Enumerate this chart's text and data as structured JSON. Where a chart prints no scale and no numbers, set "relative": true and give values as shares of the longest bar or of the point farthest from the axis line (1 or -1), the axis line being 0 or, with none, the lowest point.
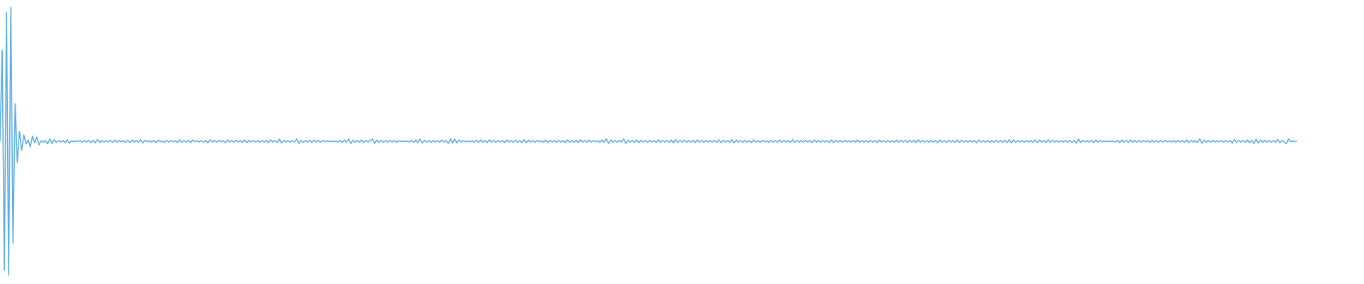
{
  "chart_data": {
    "type": "line",
    "relative": true,
    "color": "#5dade2",
    "categories": [
      null,
      null,
      null,
      null,
      null,
      null,
      null,
      null,
      null,
      null,
      null,
      null,
      null,
      null,
      null,
      null,
      null,
      null,
      null,
      null,
      null,
      null,
      null,
      null,
      null,
      null,
      null,
      null,
      null,
      null,
      null,
      null,
      null,
      null,
      null,
      null,
      null,
      null,
      null,
      null,
      null,
      null,
      null,
      null,
      null,
      null,
      null,
      null,
      null,
      null,
      null,
      null,
      null,
      null,
      null,
      null,
      null,
      null,
      null,
      null,
      null,
      null,
      null,
      null,
      null,
      null,
      null,
      null,
      null,
      null,
      null,
      null,
      null,
      null,
      null,
      null,
      null,
      null,
      null,
      null,
      null,
      null,
      null,
      null,
      null,
      null,
      null,
      null,
      null,
      null,
      null,
      null,
      null,
      null,
      null,
      null,
      null,
      null,
      null,
      null,
      null,
      null,
      null,
      null,
      null,
      null,
      null,
      null,
      null,
      null,
      null,
      null,
      null,
      null,
      null,
      null,
      null,
      null,
      null,
      null,
      null,
      null,
      null,
      null,
      null,
      null,
      null,
      null,
      null,
      null,
      null,
      null,
      null,
      null,
      null,
      null,
      null,
      null,
      null,
      null,
      null,
      null,
      null,
      null,
      null,
      null,
      null,
      null,
      null,
      null,
      null,
      null,
      null,
      null,
      null,
      null,
      null,
      null,
      null,
      null,
      null,
      null,
      null,
      null,
      null,
      null,
      null,
      null,
      null,
      null,
      null,
      null,
      null,
      null,
      null,
      null,
      null,
      null,
      null,
      null,
      null,
      null,
      null,
      null,
      null,
      null,
      null,
      null,
      null,
      null,
      null,
      null,
      null,
      null,
      null,
      null,
      null,
      null,
      null,
      null,
      null,
      null,
      null,
      null,
      null,
      null,
      null,
      null,
      null,
      null,
      null,
      null,
      null,
      null,
      null,
      null,
      null,
      null,
      null,
      null,
      null,
      null,
      null,
      null,
      null,
      null,
      null,
      null,
      null,
      null,
      null,
      null,
      null,
      null,
      null,
      null,
      null,
      null,
      null,
      null,
      null,
      null,
      null,
      null,
      null,
      null,
      null,
      null,
      null,
      null,
      null,
      null,
      null,
      null,
      null,
      null,
      null,
      null,
      null,
      null,
      null,
      null,
      null,
      null,
      null,
      null,
      null,
      null,
      null,
      null,
      null,
      null,
      null,
      null,
      null,
      null,
      null,
      null,
      null,
      null,
      null,
      null,
      null,
      null,
      null,
      null,
      null,
      null,
      null,
      null,
      null,
      null,
      null,
      null,
      null,
      null,
      null,
      null,
      null,
      null,
      null,
      null,
      null,
      null,
      null,
      null,
      null,
      null,
      null,
      null,
      null,
      null,
      null,
      null,
      null,
      null,
      null,
      null,
      null,
      null,
      null,
      null,
      null,
      null,
      null,
      null,
      null,
      null,
      null,
      null,
      null,
      null,
      null,
      null,
      null,
      null,
      null,
      null,
      null,
      null,
      null,
      null,
      null,
      null,
      null,
      null,
      null,
      null,
      null,
      null,
      null,
      null,
      null,
      null,
      null,
      null,
      null,
      null,
      null,
      null,
      null,
      null,
      null,
      null,
      null,
      null,
      null,
      null,
      null,
      null,
      null,
      null,
      null,
      null,
      null,
      null,
      null,
      null,
      null,
      null,
      null,
      null,
      null,
      null,
      null,
      null,
      null,
      null,
      null,
      null,
      null,
      null,
      null,
      null,
      null,
      null,
      null,
      null,
      null,
      null,
      null,
      null,
      null,
      null,
      null,
      null,
      null,
      null,
      null,
      null,
      null,
      null,
      null,
      null,
      null,
      null,
      null,
      null,
      null,
      null,
      null,
      null,
      null,
      null,
      null,
      null,
      null,
      null,
      null,
      null,
      null,
      null,
      null,
      null,
      null,
      null,
      null,
      null,
      null,
      null,
      null,
      null,
      null,
      null,
      null,
      null,
      null,
      null,
      null,
      null,
      null,
      null,
      null,
      null,
      null,
      null,
      null,
      null,
      null,
      null,
      null,
      null,
      null,
      null,
      null,
      null,
      null,
      null,
      null,
      null,
      null,
      null,
      null,
      null,
      null,
      null,
      null,
      null,
      null,
      null,
      null,
      null,
      null,
      null,
      null,
      null,
      null,
      null,
      null,
      null,
      null,
      null,
      null,
      null,
      null,
      null,
      null,
      null,
      null,
      null,
      null,
      null,
      null,
      null,
      null,
      null,
      null,
      null,
      null,
      null,
      null,
      null,
      null,
      null,
      null,
      null,
      null,
      null,
      null,
      null,
      null,
      null,
      null,
      null,
      null,
      null,
      null,
      null,
      null,
      null,
      null,
      null,
      null,
      null,
      null,
      null,
      null,
      null,
      null,
      null,
      null,
      null,
      null,
      null,
      null,
      null,
      null,
      null,
      null,
      null,
      null,
      null,
      null,
      null,
      null,
      null,
      null,
      null,
      null,
      null,
      null,
      null,
      null,
      null,
      null,
      null,
      null,
      null,
      null,
      null,
      null,
      null,
      null,
      null,
      null,
      null,
      null,
      null,
      null,
      null,
      null,
      null,
      null,
      null,
      null,
      null,
      null,
      null,
      null,
      null,
      null,
      null,
      null,
      null,
      null,
      null,
      null,
      null,
      null,
      null
    ],
    "values": [
      0.5,
      0.84,
      0.02,
      0.98,
      0.0,
      1.0,
      0.12,
      0.64,
      0.42,
      0.537,
      0.466,
      0.524,
      0.49,
      0.505,
      0.479,
      0.519,
      0.495,
      0.516,
      0.487,
      0.502,
      0.497,
      0.503,
      0.49,
      0.509,
      0.492,
      0.506,
      0.496,
      0.504,
      0.497,
      0.503,
      0.495,
      0.506,
      0.493,
      0.501,
      0.499,
      0.501,
      0.499,
      0.503,
      0.496,
      0.504,
      0.497,
      0.504,
      0.495,
      0.503,
      0.494,
      0.507,
      0.495,
      0.503,
      0.497,
      0.502,
      0.498,
      0.504,
      0.496,
      0.505,
      0.497,
      0.503,
      0.498,
      0.502,
      0.496,
      0.504,
      0.495,
      0.505,
      0.497,
      0.503,
      0.496,
      0.506,
      0.494,
      0.504,
      0.498,
      0.502,
      0.497,
      0.503,
      0.495,
      0.505,
      0.498,
      0.502,
      0.496,
      0.504,
      0.497,
      0.503,
      0.498,
      0.502,
      0.495,
      0.506,
      0.496,
      0.503,
      0.497,
      0.504,
      0.495,
      0.505,
      0.498,
      0.502,
      0.497,
      0.504,
      0.496,
      0.503,
      0.494,
      0.506,
      0.497,
      0.503,
      0.496,
      0.504,
      0.498,
      0.502,
      0.495,
      0.505,
      0.497,
      0.503,
      0.496,
      0.504,
      0.498,
      0.502,
      0.496,
      0.505,
      0.495,
      0.504,
      0.497,
      0.503,
      0.498,
      0.502,
      0.496,
      0.504,
      0.497,
      0.503,
      0.495,
      0.505,
      0.497,
      0.504,
      0.496,
      0.508,
      0.493,
      0.504,
      0.497,
      0.503,
      0.496,
      0.504,
      0.497,
      0.509,
      0.492,
      0.504,
      0.496,
      0.503,
      0.497,
      0.504,
      0.495,
      0.505,
      0.497,
      0.503,
      0.496,
      0.504,
      0.498,
      0.501,
      0.499,
      0.501,
      0.499,
      0.501,
      0.497,
      0.504,
      0.495,
      0.505,
      0.497,
      0.509,
      0.492,
      0.504,
      0.497,
      0.503,
      0.496,
      0.505,
      0.495,
      0.504,
      0.497,
      0.503,
      0.508,
      0.492,
      0.505,
      0.496,
      0.504,
      0.497,
      0.503,
      0.496,
      0.504,
      0.497,
      0.503,
      0.496,
      0.502,
      0.499,
      0.501,
      0.499,
      0.501,
      0.497,
      0.504,
      0.496,
      0.505,
      0.495,
      0.509,
      0.493,
      0.504,
      0.497,
      0.503,
      0.496,
      0.504,
      0.497,
      0.503,
      0.496,
      0.505,
      0.497,
      0.503,
      0.492,
      0.509,
      0.493,
      0.508,
      0.494,
      0.505,
      0.497,
      0.503,
      0.498,
      0.502,
      0.497,
      0.503,
      0.496,
      0.504,
      0.496,
      0.505,
      0.497,
      0.503,
      0.495,
      0.506,
      0.497,
      0.503,
      0.496,
      0.504,
      0.497,
      0.503,
      0.495,
      0.505,
      0.497,
      0.503,
      0.496,
      0.504,
      0.497,
      0.503,
      0.495,
      0.507,
      0.494,
      0.505,
      0.497,
      0.503,
      0.496,
      0.504,
      0.498,
      0.502,
      0.496,
      0.505,
      0.495,
      0.504,
      0.497,
      0.503,
      0.496,
      0.504,
      0.497,
      0.503,
      0.495,
      0.505,
      0.497,
      0.503,
      0.496,
      0.504,
      0.495,
      0.506,
      0.497,
      0.503,
      0.496,
      0.505,
      0.497,
      0.503,
      0.498,
      0.502,
      0.496,
      0.505,
      0.496,
      0.509,
      0.492,
      0.505,
      0.497,
      0.503,
      0.496,
      0.504,
      0.497,
      0.509,
      0.492,
      0.504,
      0.497,
      0.503,
      0.496,
      0.505,
      0.495,
      0.504,
      0.497,
      0.503,
      0.496,
      0.504,
      0.497,
      0.503,
      0.495,
      0.506,
      0.496,
      0.504,
      0.497,
      0.503,
      0.496,
      0.505,
      0.494,
      0.507,
      0.496,
      0.503,
      0.497,
      0.504,
      0.496,
      0.503,
      0.497,
      0.504,
      0.495,
      0.505,
      0.497,
      0.503,
      0.496,
      0.504,
      0.497,
      0.502,
      0.498,
      0.503,
      0.496,
      0.505,
      0.495,
      0.504,
      0.497,
      0.503,
      0.496,
      0.506,
      0.494,
      0.505,
      0.497,
      0.503,
      0.496,
      0.504,
      0.497,
      0.503,
      0.495,
      0.505,
      0.497,
      0.503,
      0.496,
      0.504,
      0.498,
      0.502,
      0.496,
      0.504,
      0.497,
      0.503,
      0.496,
      0.505,
      0.496,
      0.504,
      0.497,
      0.503,
      0.495,
      0.506,
      0.496,
      0.504,
      0.497,
      0.503,
      0.496,
      0.504,
      0.497,
      0.503,
      0.495,
      0.505,
      0.497,
      0.503,
      0.496,
      0.504,
      0.497,
      0.503,
      0.496,
      0.505,
      0.495,
      0.504,
      0.497,
      0.503,
      0.496,
      0.504,
      0.498,
      0.502,
      0.497,
      0.503,
      0.496,
      0.505,
      0.496,
      0.504,
      0.497,
      0.503,
      0.496,
      0.504,
      0.497,
      0.503,
      0.495,
      0.505,
      0.497,
      0.503,
      0.496,
      0.504,
      0.497,
      0.503,
      0.496,
      0.505,
      0.496,
      0.504,
      0.497,
      0.503,
      0.496,
      0.504,
      0.497,
      0.503,
      0.495,
      0.506,
      0.496,
      0.504,
      0.497,
      0.503,
      0.496,
      0.504,
      0.497,
      0.503,
      0.495,
      0.505,
      0.497,
      0.503,
      0.496,
      0.504,
      0.497,
      0.503,
      0.496,
      0.505,
      0.496,
      0.504,
      0.497,
      0.503,
      0.496,
      0.504,
      0.497,
      0.503,
      0.495,
      0.505,
      0.497,
      0.503,
      0.496,
      0.504,
      0.497,
      0.503,
      0.496,
      0.504,
      0.496,
      0.503,
      0.497,
      0.504,
      0.495,
      0.506,
      0.494,
      0.505,
      0.496,
      0.504,
      0.497,
      0.503,
      0.496,
      0.504,
      0.497,
      0.503,
      0.496,
      0.505,
      0.495,
      0.505,
      0.497,
      0.503,
      0.495,
      0.506,
      0.496,
      0.504,
      0.497,
      0.503,
      0.497,
      0.502,
      0.497,
      0.503,
      0.496,
      0.504,
      0.496,
      0.503,
      0.493,
      0.508,
      0.495,
      0.503,
      0.498,
      0.502,
      0.497,
      0.504,
      0.495,
      0.505,
      0.497,
      0.503,
      0.499,
      0.501,
      0.499,
      0.501,
      0.499,
      0.501,
      0.497,
      0.504,
      0.495,
      0.505,
      0.496,
      0.504,
      0.496,
      0.505,
      0.497,
      0.503,
      0.496,
      0.504,
      0.497,
      0.503,
      0.498,
      0.502,
      0.496,
      0.504,
      0.497,
      0.503,
      0.496,
      0.504,
      0.497,
      0.503,
      0.498,
      0.502,
      0.497,
      0.503,
      0.496,
      0.504,
      0.497,
      0.503,
      0.496,
      0.505,
      0.495,
      0.504,
      0.497,
      0.503,
      0.496,
      0.509,
      0.493,
      0.505,
      0.496,
      0.504,
      0.497,
      0.503,
      0.497,
      0.502,
      0.498,
      0.503,
      0.496,
      0.504,
      0.497,
      0.503,
      0.493,
      0.507,
      0.496,
      0.504,
      0.497,
      0.503,
      0.496,
      0.505,
      0.495,
      0.504,
      0.492,
      0.508,
      0.494,
      0.505,
      0.496,
      0.504,
      0.497,
      0.503,
      0.496,
      0.504,
      0.496,
      0.507,
      0.495,
      0.504,
      0.497,
      0.491,
      0.509,
      0.499,
      0.501,
      0.5,
      0.5
    ]
  }
}
